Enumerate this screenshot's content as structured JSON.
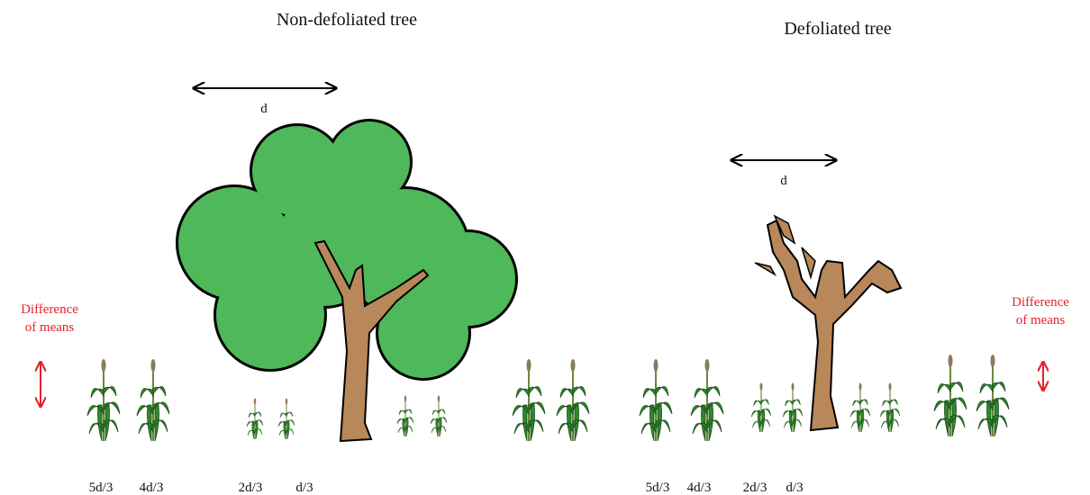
{
  "panels": [
    {
      "title": "Non-defoliated tree",
      "distance_label": "d",
      "difference_label": [
        "Difference",
        "of means"
      ],
      "positions": [
        "5d/3",
        "4d/3",
        "2d/3",
        "d/3"
      ]
    },
    {
      "title": "Defoliated tree",
      "distance_label": "d",
      "difference_label": [
        "Difference",
        "of means"
      ],
      "positions": [
        "5d/3",
        "4d/3",
        "2d/3",
        "d/3"
      ]
    }
  ]
}
